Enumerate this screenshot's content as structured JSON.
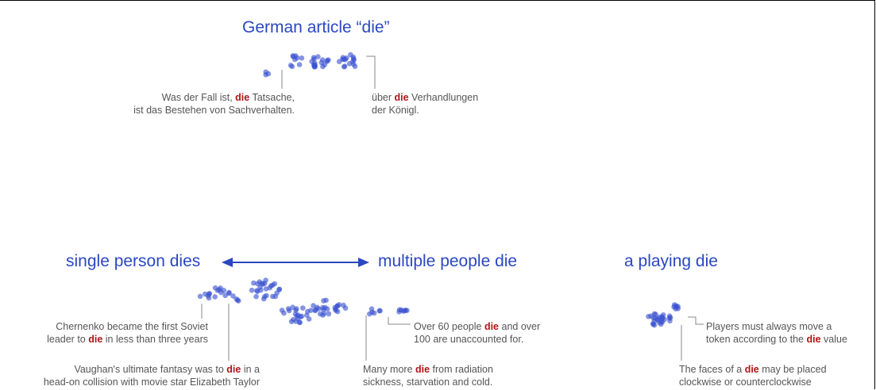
{
  "colors": {
    "accent": "#2a47c2",
    "highlight": "#b11414",
    "dot": "#3a52d1",
    "text": "#555555",
    "leader": "#888888"
  },
  "groups": {
    "german": {
      "title": "German article “die”",
      "notes": [
        {
          "lines": [
            {
              "pre": "Was der Fall ist, ",
              "hl": "die",
              "post": " Tatsache,"
            },
            {
              "pre": "ist das Bestehen von Sachverhalten.",
              "hl": "",
              "post": ""
            }
          ]
        },
        {
          "lines": [
            {
              "pre": "über ",
              "hl": "die",
              "post": " Verhandlungen"
            },
            {
              "pre": "der Königl.",
              "hl": "",
              "post": ""
            }
          ]
        }
      ]
    },
    "single": {
      "title": "single person dies",
      "notes": [
        {
          "lines": [
            {
              "pre": "Chernenko became the first Soviet",
              "hl": "",
              "post": ""
            },
            {
              "pre": "leader to ",
              "hl": "die",
              "post": " in less than three years"
            }
          ]
        },
        {
          "lines": [
            {
              "pre": "Vaughan's ultimate fantasy was to ",
              "hl": "die",
              "post": " in a"
            },
            {
              "pre": "head-on collision with movie star Elizabeth Taylor",
              "hl": "",
              "post": ""
            }
          ]
        }
      ]
    },
    "multiple": {
      "title": "multiple people die",
      "notes": [
        {
          "lines": [
            {
              "pre": "Over 60 people ",
              "hl": "die",
              "post": " and over"
            },
            {
              "pre": "100 are unaccounted for.",
              "hl": "",
              "post": ""
            }
          ]
        },
        {
          "lines": [
            {
              "pre": "Many more ",
              "hl": "die",
              "post": " from radiation"
            },
            {
              "pre": "sickness, starvation and cold.",
              "hl": "",
              "post": ""
            }
          ]
        }
      ]
    },
    "playing": {
      "title": "a playing die",
      "notes": [
        {
          "lines": [
            {
              "pre": "Players must always move a",
              "hl": "",
              "post": ""
            },
            {
              "pre": "token according to the ",
              "hl": "die",
              "post": " value"
            }
          ]
        },
        {
          "lines": [
            {
              "pre": "The faces of a ",
              "hl": "die",
              "post": " may be placed"
            },
            {
              "pre": "clockwise or counterclockwise",
              "hl": "",
              "post": ""
            }
          ]
        }
      ]
    }
  }
}
